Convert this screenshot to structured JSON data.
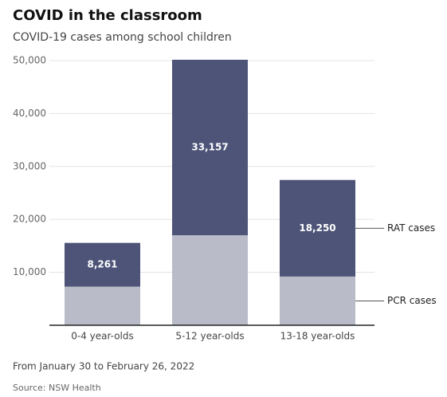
{
  "chart_data": {
    "type": "stacked_bar",
    "title": "COVID in the classroom",
    "subtitle": "COVID-19 cases among school children",
    "categories": [
      "0-4 year-olds",
      "5-12 year-olds",
      "13-18 year-olds"
    ],
    "series": [
      {
        "name": "PCR cases",
        "color": "#b9bcc8",
        "values": [
          7300,
          17000,
          9200
        ]
      },
      {
        "name": "RAT cases",
        "color": "#4d5478",
        "values": [
          8261,
          33157,
          18250
        ],
        "value_labels": [
          "8,261",
          "33,157",
          "18,250"
        ]
      }
    ],
    "ylim": [
      0,
      50000
    ],
    "yticks": [
      {
        "value": 10000,
        "label": "10,000"
      },
      {
        "value": 20000,
        "label": "20,000"
      },
      {
        "value": 30000,
        "label": "30,000"
      },
      {
        "value": 40000,
        "label": "40,000"
      },
      {
        "value": 50000,
        "label": "50,000"
      }
    ],
    "grid": true,
    "note": "From January 30 to February 26, 2022",
    "source": "Source: NSW Health"
  }
}
